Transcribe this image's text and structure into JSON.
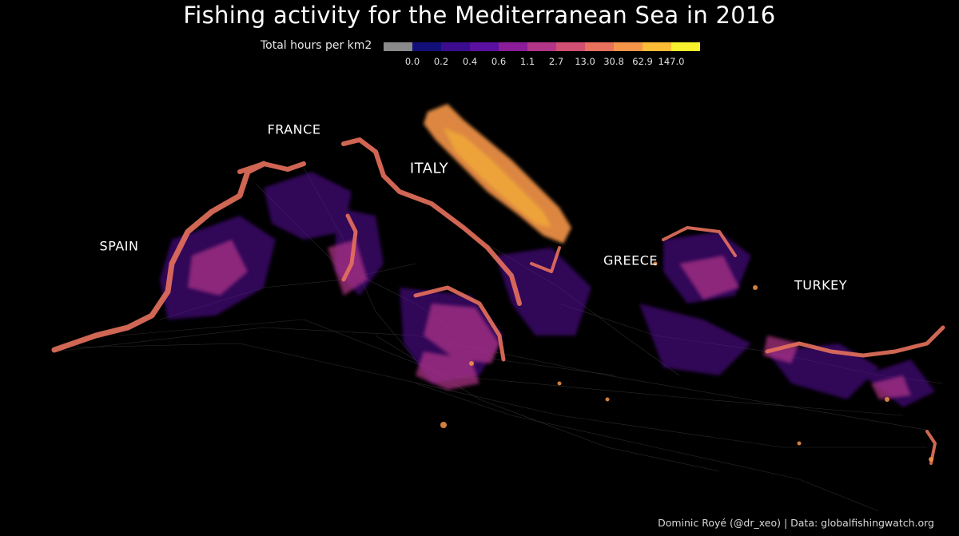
{
  "title": "Fishing activity for the Mediterranean Sea in 2016",
  "legend": {
    "label": "Total hours per km2",
    "colors": [
      "#8a8a8a",
      "#120f78",
      "#3b0d8e",
      "#5a10a0",
      "#8b1c9a",
      "#b3358a",
      "#d24f74",
      "#e7715d",
      "#f5954a",
      "#fbbc36",
      "#f7f22d"
    ],
    "ticks": [
      "0.0",
      "0.2",
      "0.4",
      "0.6",
      "1.1",
      "2.7",
      "13.0",
      "30.8",
      "62.9",
      "147.0"
    ]
  },
  "countries": {
    "france": "FRANCE",
    "italy": "ITALY",
    "spain": "SPAIN",
    "greece": "GREECE",
    "turkey": "TURKEY"
  },
  "credit": "Dominic Royé (@dr_xeo) | Data: globalfishingwatch.org"
}
